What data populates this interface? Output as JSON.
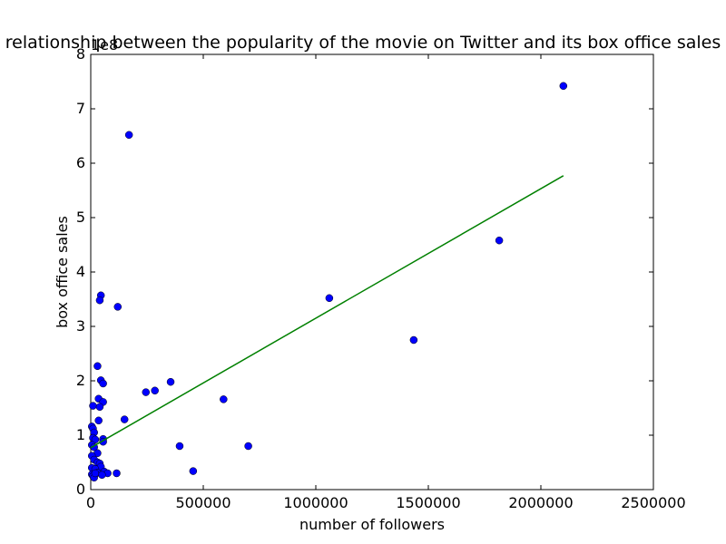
{
  "chart_data": {
    "type": "scatter",
    "title": "relationship between the popularity of the movie on Twitter and its box office sales",
    "xlabel": "number of followers",
    "ylabel": "box office sales",
    "offset_label": "1e8",
    "xlim": [
      0,
      2500000
    ],
    "ylim": [
      0,
      8
    ],
    "x_ticks": [
      0,
      500000,
      1000000,
      1500000,
      2000000,
      2500000
    ],
    "y_ticks": [
      0,
      1,
      2,
      3,
      4,
      5,
      6,
      7,
      8
    ],
    "x_tick_labels": [
      "0",
      "500000",
      "1000000",
      "1500000",
      "2000000",
      "2500000"
    ],
    "y_tick_labels": [
      "0",
      "1",
      "2",
      "3",
      "4",
      "5",
      "6",
      "7",
      "8"
    ],
    "grid": false,
    "series": [
      {
        "marker": "circle",
        "color": "#0000ff",
        "points": [
          [
            2100000,
            7.42
          ],
          [
            170000,
            6.52
          ],
          [
            1815000,
            4.58
          ],
          [
            1060000,
            3.52
          ],
          [
            45000,
            3.57
          ],
          [
            40000,
            3.48
          ],
          [
            120000,
            3.36
          ],
          [
            1435000,
            2.75
          ],
          [
            30000,
            2.27
          ],
          [
            45000,
            2.01
          ],
          [
            55000,
            1.95
          ],
          [
            355000,
            1.98
          ],
          [
            285000,
            1.82
          ],
          [
            245000,
            1.79
          ],
          [
            35000,
            1.67
          ],
          [
            55000,
            1.61
          ],
          [
            10000,
            1.54
          ],
          [
            40000,
            1.52
          ],
          [
            590000,
            1.66
          ],
          [
            35000,
            1.27
          ],
          [
            150000,
            1.29
          ],
          [
            5000,
            1.16
          ],
          [
            10000,
            1.12
          ],
          [
            15000,
            1.05
          ],
          [
            10000,
            0.95
          ],
          [
            20000,
            0.92
          ],
          [
            55000,
            0.93
          ],
          [
            55000,
            0.88
          ],
          [
            5000,
            0.82
          ],
          [
            15000,
            0.78
          ],
          [
            395000,
            0.8
          ],
          [
            700000,
            0.8
          ],
          [
            30000,
            0.67
          ],
          [
            5000,
            0.62
          ],
          [
            15000,
            0.55
          ],
          [
            30000,
            0.5
          ],
          [
            40000,
            0.48
          ],
          [
            45000,
            0.42
          ],
          [
            5000,
            0.4
          ],
          [
            20000,
            0.38
          ],
          [
            60000,
            0.33
          ],
          [
            30000,
            0.31
          ],
          [
            75000,
            0.3
          ],
          [
            115000,
            0.3
          ],
          [
            455000,
            0.34
          ],
          [
            5000,
            0.28
          ],
          [
            10000,
            0.25
          ],
          [
            15000,
            0.22
          ],
          [
            20000,
            0.3
          ],
          [
            50000,
            0.27
          ]
        ]
      },
      {
        "type": "line",
        "color": "#008000",
        "x": [
          0,
          2100000
        ],
        "y": [
          0.77,
          5.77
        ]
      }
    ]
  }
}
